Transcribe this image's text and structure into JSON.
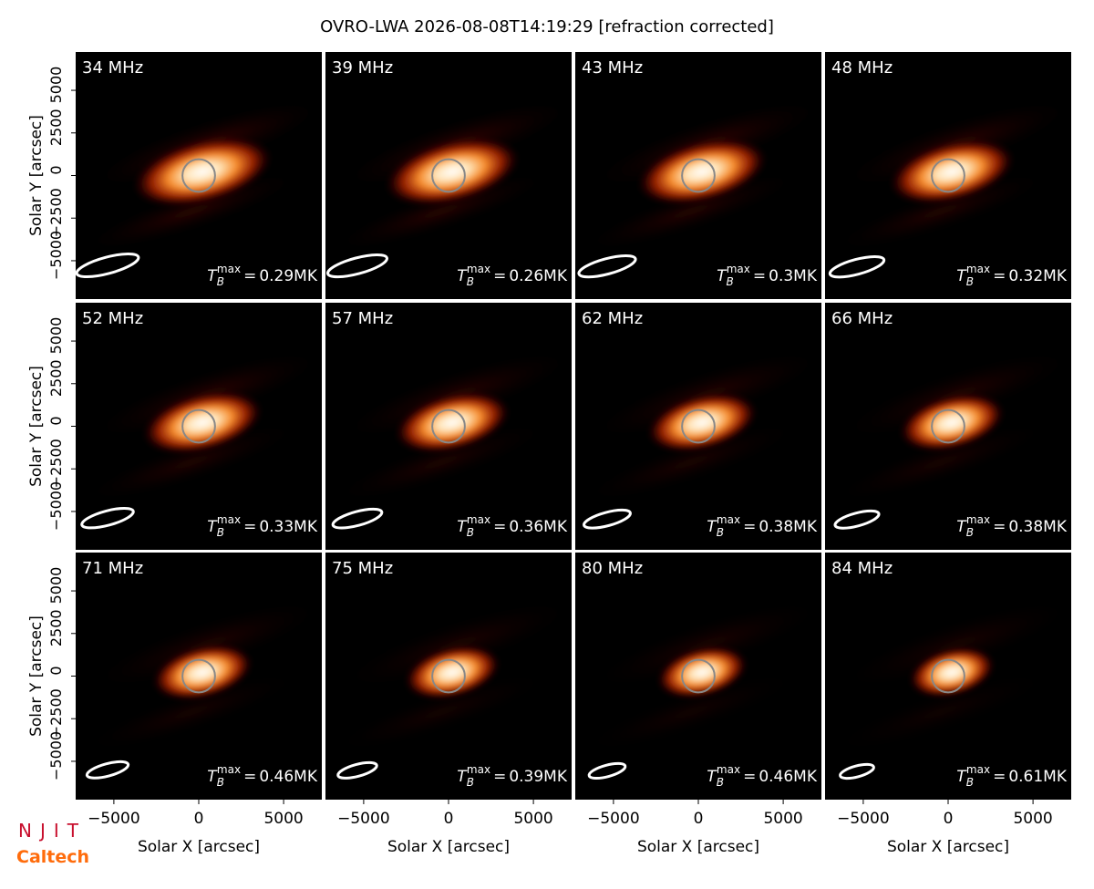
{
  "figure_title": "OVRO-LWA 2026-08-08T14:19:29 [refraction corrected]",
  "logos": [
    "NJIT",
    "Caltech"
  ],
  "tb_symbol": "T",
  "tb_sub": "B",
  "tb_sup": "max",
  "tb_eq": "=",
  "chart_data": [
    {
      "type": "image",
      "title": "34 MHz",
      "tb_max": "0.29MK",
      "xlim": [
        -7250,
        7250
      ],
      "ylim": [
        -7250,
        7250
      ],
      "ylabel": "Solar Y [arcsec]",
      "yticks": [
        {
          "value": -5000,
          "label": "−5000"
        },
        {
          "value": -2500,
          "label": "−2500"
        },
        0,
        2500,
        5000
      ]
    },
    {
      "type": "image",
      "title": "39 MHz",
      "tb_max": "0.26MK",
      "xlim": [
        -7250,
        7250
      ],
      "ylim": [
        -7250,
        7250
      ]
    },
    {
      "type": "image",
      "title": "43 MHz",
      "tb_max": "0.3MK",
      "xlim": [
        -7250,
        7250
      ],
      "ylim": [
        -7250,
        7250
      ]
    },
    {
      "type": "image",
      "title": "48 MHz",
      "tb_max": "0.32MK",
      "xlim": [
        -7250,
        7250
      ],
      "ylim": [
        -7250,
        7250
      ]
    },
    {
      "type": "image",
      "title": "52 MHz",
      "tb_max": "0.33MK",
      "xlim": [
        -7250,
        7250
      ],
      "ylim": [
        -7250,
        7250
      ],
      "ylabel": "Solar Y [arcsec]",
      "yticks": [
        {
          "value": -5000,
          "label": "−5000"
        },
        {
          "value": -2500,
          "label": "−2500"
        },
        0,
        2500,
        5000
      ]
    },
    {
      "type": "image",
      "title": "57 MHz",
      "tb_max": "0.36MK",
      "xlim": [
        -7250,
        7250
      ],
      "ylim": [
        -7250,
        7250
      ]
    },
    {
      "type": "image",
      "title": "62 MHz",
      "tb_max": "0.38MK",
      "xlim": [
        -7250,
        7250
      ],
      "ylim": [
        -7250,
        7250
      ]
    },
    {
      "type": "image",
      "title": "66 MHz",
      "tb_max": "0.38MK",
      "xlim": [
        -7250,
        7250
      ],
      "ylim": [
        -7250,
        7250
      ]
    },
    {
      "type": "image",
      "title": "71 MHz",
      "tb_max": "0.46MK",
      "xlim": [
        -7250,
        7250
      ],
      "ylim": [
        -7250,
        7250
      ],
      "ylabel": "Solar Y [arcsec]",
      "yticks": [
        {
          "value": -5000,
          "label": "−5000"
        },
        {
          "value": -2500,
          "label": "−2500"
        },
        0,
        2500,
        5000
      ],
      "xlabel": "Solar X [arcsec]",
      "xticks": [
        {
          "value": -5000,
          "label": "−5000"
        },
        0,
        5000
      ]
    },
    {
      "type": "image",
      "title": "75 MHz",
      "tb_max": "0.39MK",
      "xlim": [
        -7250,
        7250
      ],
      "ylim": [
        -7250,
        7250
      ],
      "xlabel": "Solar X [arcsec]",
      "xticks": [
        {
          "value": -5000,
          "label": "−5000"
        },
        0,
        5000
      ]
    },
    {
      "type": "image",
      "title": "80 MHz",
      "tb_max": "0.46MK",
      "xlim": [
        -7250,
        7250
      ],
      "ylim": [
        -7250,
        7250
      ],
      "xlabel": "Solar X [arcsec]",
      "xticks": [
        {
          "value": -5000,
          "label": "−5000"
        },
        0,
        5000
      ]
    },
    {
      "type": "image",
      "title": "84 MHz",
      "tb_max": "0.61MK",
      "xlim": [
        -7250,
        7250
      ],
      "ylim": [
        -7250,
        7250
      ],
      "xlabel": "Solar X [arcsec]",
      "xticks": [
        {
          "value": -5000,
          "label": "−5000"
        },
        0,
        5000
      ]
    }
  ]
}
